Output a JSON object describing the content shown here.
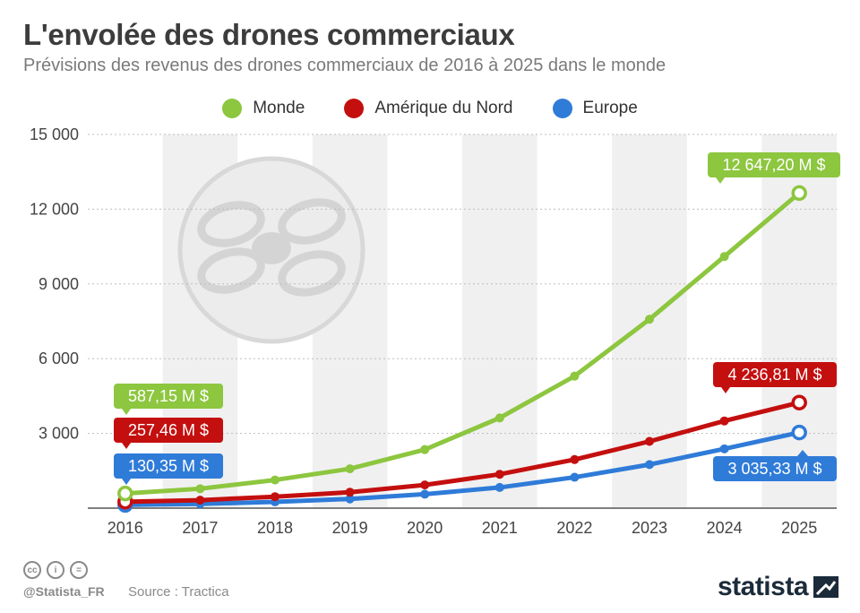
{
  "header": {
    "title": "L'envolée des drones commerciaux",
    "subtitle": "Prévisions des revenus des drones commerciaux de 2016 à 2025 dans le monde"
  },
  "chart_data": {
    "type": "line",
    "x": [
      "2016",
      "2017",
      "2018",
      "2019",
      "2020",
      "2021",
      "2022",
      "2023",
      "2024",
      "2025"
    ],
    "ylim": [
      0,
      15000
    ],
    "yticks": [
      0,
      3000,
      6000,
      9000,
      12000,
      15000
    ],
    "ytick_labels": [
      "",
      "3 000",
      "6 000",
      "9 000",
      "12 000",
      "15 000"
    ],
    "grid": true,
    "legend_placement": "top-center",
    "series": [
      {
        "name": "Monde",
        "color": "#8dc63f",
        "values": [
          587.15,
          780,
          1130,
          1580,
          2350,
          3620,
          5300,
          7580,
          10100,
          12647.2
        ]
      },
      {
        "name": "Amérique du Nord",
        "color": "#c40f0f",
        "values": [
          257.46,
          320,
          460,
          640,
          930,
          1360,
          1950,
          2680,
          3500,
          4236.81
        ]
      },
      {
        "name": "Europe",
        "color": "#2f7bd8",
        "values": [
          130.35,
          170,
          250,
          370,
          560,
          830,
          1240,
          1750,
          2380,
          3035.33
        ]
      }
    ],
    "annotations": [
      {
        "series": "Monde",
        "x": "2016",
        "text": "587,15 M $"
      },
      {
        "series": "Amérique du Nord",
        "x": "2016",
        "text": "257,46 M $"
      },
      {
        "series": "Europe",
        "x": "2016",
        "text": "130,35 M $"
      },
      {
        "series": "Monde",
        "x": "2025",
        "text": "12 647,20 M $"
      },
      {
        "series": "Amérique du Nord",
        "x": "2025",
        "text": "4 236,81 M $"
      },
      {
        "series": "Europe",
        "x": "2025",
        "text": "3 035,33 M $"
      }
    ]
  },
  "footer": {
    "handle": "@Statista_FR",
    "source": "Source : Tractica",
    "brand": "statista"
  },
  "icons": {
    "license": [
      "cc-icon",
      "by-icon",
      "nd-icon"
    ],
    "license_labels": [
      "cc",
      "i",
      "="
    ],
    "watermark": "drone-icon"
  }
}
